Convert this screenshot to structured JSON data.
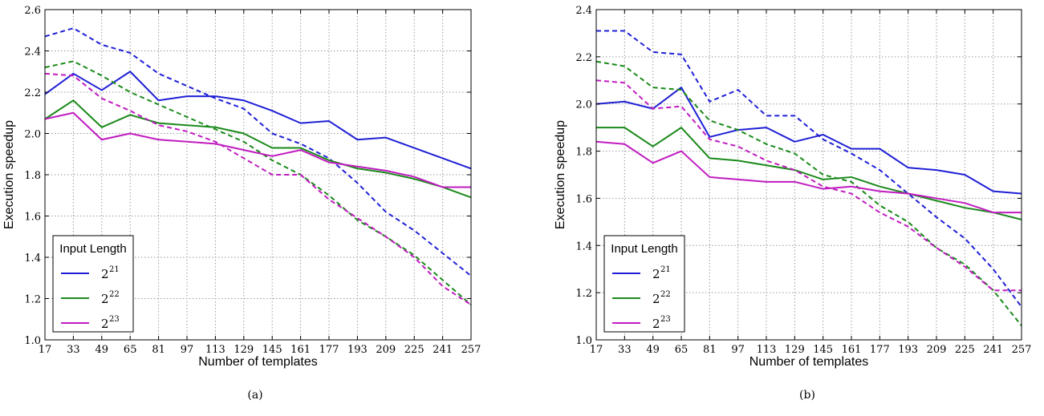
{
  "chart_data": [
    {
      "type": "line",
      "panel": "a",
      "caption": "(a)",
      "xlabel": "Number of templates",
      "ylabel": "Execution speedup",
      "categories": [
        "17",
        "33",
        "49",
        "65",
        "81",
        "97",
        "113",
        "129",
        "145",
        "161",
        "177",
        "193",
        "209",
        "225",
        "241",
        "257"
      ],
      "ylim": [
        1.0,
        2.6
      ],
      "yticks": [
        "1.0",
        "1.2",
        "1.4",
        "1.6",
        "1.8",
        "2.0",
        "2.2",
        "2.4",
        "2.6"
      ],
      "grid": true,
      "legend": {
        "title": "Input Length",
        "position": "lower-left",
        "entries": [
          {
            "base": "2",
            "exp": "21",
            "color": "#1f1fd6"
          },
          {
            "base": "2",
            "exp": "22",
            "color": "#1a8a1a"
          },
          {
            "base": "2",
            "exp": "23",
            "color": "#c01cc0"
          }
        ]
      },
      "series": [
        {
          "group": 0,
          "style": "solid",
          "color": "#1f1fd6",
          "values": [
            2.19,
            2.29,
            2.21,
            2.3,
            2.16,
            2.18,
            2.18,
            2.16,
            2.11,
            2.05,
            2.06,
            1.97,
            1.98,
            1.93,
            1.88,
            1.83
          ]
        },
        {
          "group": 0,
          "style": "dashed",
          "color": "#1f1fd6",
          "values": [
            2.47,
            2.51,
            2.43,
            2.39,
            2.29,
            2.23,
            2.17,
            2.12,
            2.0,
            1.95,
            1.88,
            1.76,
            1.62,
            1.53,
            1.42,
            1.31
          ]
        },
        {
          "group": 1,
          "style": "solid",
          "color": "#1a8a1a",
          "values": [
            2.07,
            2.16,
            2.03,
            2.09,
            2.05,
            2.04,
            2.03,
            2.0,
            1.93,
            1.93,
            1.87,
            1.83,
            1.81,
            1.78,
            1.74,
            1.69
          ]
        },
        {
          "group": 1,
          "style": "dashed",
          "color": "#1a8a1a",
          "values": [
            2.32,
            2.35,
            2.28,
            2.2,
            2.14,
            2.08,
            2.02,
            1.96,
            1.87,
            1.8,
            1.7,
            1.58,
            1.5,
            1.41,
            1.29,
            1.17
          ]
        },
        {
          "group": 2,
          "style": "solid",
          "color": "#c01cc0",
          "values": [
            2.07,
            2.1,
            1.97,
            2.0,
            1.97,
            1.96,
            1.95,
            1.92,
            1.89,
            1.92,
            1.86,
            1.84,
            1.82,
            1.79,
            1.74,
            1.74
          ]
        },
        {
          "group": 2,
          "style": "dashed",
          "color": "#c01cc0",
          "values": [
            2.29,
            2.28,
            2.17,
            2.11,
            2.04,
            2.01,
            1.96,
            1.88,
            1.8,
            1.8,
            1.68,
            1.59,
            1.5,
            1.4,
            1.26,
            1.17
          ]
        }
      ]
    },
    {
      "type": "line",
      "panel": "b",
      "caption": "(b)",
      "xlabel": "Number of templates",
      "ylabel": "Execution speedup",
      "categories": [
        "17",
        "33",
        "49",
        "65",
        "81",
        "97",
        "113",
        "129",
        "145",
        "161",
        "177",
        "193",
        "209",
        "225",
        "241",
        "257"
      ],
      "ylim": [
        1.0,
        2.4
      ],
      "yticks": [
        "1.0",
        "1.2",
        "1.4",
        "1.6",
        "1.8",
        "2.0",
        "2.2",
        "2.4"
      ],
      "grid": true,
      "legend": {
        "title": "Input Length",
        "position": "lower-left",
        "entries": [
          {
            "base": "2",
            "exp": "21",
            "color": "#1f1fd6"
          },
          {
            "base": "2",
            "exp": "22",
            "color": "#1a8a1a"
          },
          {
            "base": "2",
            "exp": "23",
            "color": "#c01cc0"
          }
        ]
      },
      "series": [
        {
          "group": 0,
          "style": "solid",
          "color": "#1f1fd6",
          "values": [
            2.0,
            2.01,
            1.98,
            2.07,
            1.86,
            1.89,
            1.9,
            1.84,
            1.87,
            1.81,
            1.81,
            1.73,
            1.72,
            1.7,
            1.63,
            1.62
          ]
        },
        {
          "group": 0,
          "style": "dashed",
          "color": "#1f1fd6",
          "values": [
            2.31,
            2.31,
            2.22,
            2.21,
            2.01,
            2.06,
            1.95,
            1.95,
            1.85,
            1.79,
            1.72,
            1.62,
            1.52,
            1.43,
            1.3,
            1.14
          ]
        },
        {
          "group": 1,
          "style": "solid",
          "color": "#1a8a1a",
          "values": [
            1.9,
            1.9,
            1.82,
            1.9,
            1.77,
            1.76,
            1.74,
            1.72,
            1.68,
            1.69,
            1.65,
            1.62,
            1.59,
            1.56,
            1.54,
            1.51
          ]
        },
        {
          "group": 1,
          "style": "dashed",
          "color": "#1a8a1a",
          "values": [
            2.18,
            2.16,
            2.07,
            2.06,
            1.93,
            1.89,
            1.83,
            1.79,
            1.7,
            1.67,
            1.57,
            1.5,
            1.39,
            1.32,
            1.21,
            1.06
          ]
        },
        {
          "group": 2,
          "style": "solid",
          "color": "#c01cc0",
          "values": [
            1.84,
            1.83,
            1.75,
            1.8,
            1.69,
            1.68,
            1.67,
            1.67,
            1.64,
            1.65,
            1.63,
            1.62,
            1.6,
            1.58,
            1.54,
            1.54
          ]
        },
        {
          "group": 2,
          "style": "dashed",
          "color": "#c01cc0",
          "values": [
            2.1,
            2.09,
            1.98,
            1.99,
            1.85,
            1.82,
            1.76,
            1.72,
            1.65,
            1.62,
            1.54,
            1.48,
            1.39,
            1.31,
            1.21,
            1.21
          ]
        }
      ]
    }
  ]
}
